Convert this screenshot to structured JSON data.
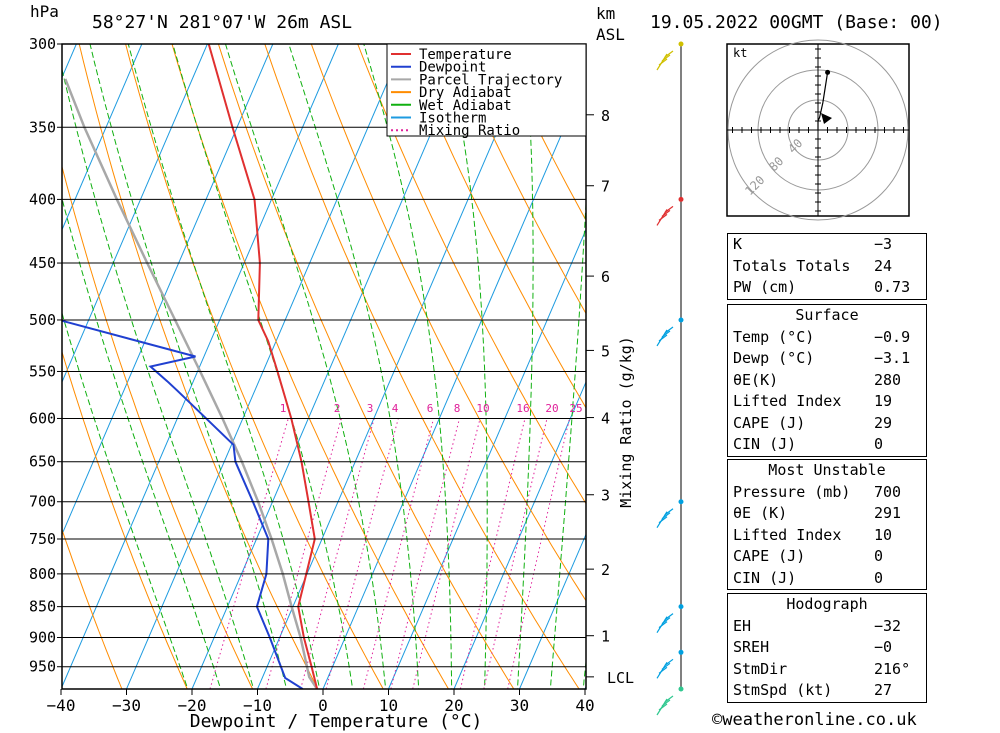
{
  "header": {
    "hpa": "hPa",
    "location": "58°27'N  281°07'W  26m  ASL",
    "km": "km",
    "asl": "ASL",
    "datetime": "19.05.2022  00GMT  (Base: 00)"
  },
  "chart_data": {
    "type": "line",
    "title": "",
    "xlabel": "Dewpoint / Temperature (°C)",
    "ylabel": "hPa",
    "xlim": [
      -40,
      40
    ],
    "ylim": [
      990,
      300
    ],
    "y_log": true,
    "skew": true,
    "x_ticks": [
      -40,
      -30,
      -20,
      -10,
      0,
      10,
      20,
      30,
      40
    ],
    "x_tick_labels": [
      "−40",
      "−30",
      "−20",
      "−10",
      "0",
      "10",
      "20",
      "30",
      "40"
    ],
    "pressure_levels": [
      300,
      350,
      400,
      450,
      500,
      550,
      600,
      650,
      700,
      750,
      800,
      850,
      900,
      950
    ],
    "km_ticks": [
      {
        "label": "1",
        "p": 897
      },
      {
        "label": "2",
        "p": 793
      },
      {
        "label": "3",
        "p": 691
      },
      {
        "label": "4",
        "p": 599
      },
      {
        "label": "5",
        "p": 529
      },
      {
        "label": "6",
        "p": 461
      },
      {
        "label": "7",
        "p": 390
      },
      {
        "label": "8",
        "p": 342
      }
    ],
    "lcl": {
      "label": "LCL",
      "p": 968
    },
    "mixing_ratio_title": "Mixing Ratio (g/kg)",
    "mixing_ratios": [
      1,
      2,
      3,
      4,
      6,
      8,
      10,
      16,
      20,
      25
    ],
    "mixing_ratio_labels": [
      "1",
      "2",
      "3",
      "4",
      "6",
      "8",
      "10",
      "16",
      "20",
      "25"
    ],
    "isotherm_temps": [
      -120,
      -110,
      -100,
      -90,
      -80,
      -70,
      -60,
      -50,
      -40,
      -30,
      -20,
      -10,
      0,
      10,
      20,
      30,
      40
    ],
    "dry_adiabat_thetas": [
      -30,
      -20,
      -10,
      0,
      10,
      20,
      30,
      40,
      50,
      60,
      70,
      80,
      90,
      100,
      110,
      120,
      130,
      140,
      150,
      160
    ],
    "wet_adiabat_thetas": [
      -20,
      -15,
      -10,
      -5,
      0,
      5,
      10,
      15,
      20,
      25,
      30,
      35,
      40
    ],
    "series": [
      {
        "name": "Temperature",
        "color": "#e03030",
        "points": [
          [
            990,
            -0.9
          ],
          [
            950,
            -3.2
          ],
          [
            900,
            -6.3
          ],
          [
            850,
            -9.2
          ],
          [
            800,
            -10.1
          ],
          [
            750,
            -11.1
          ],
          [
            700,
            -14.5
          ],
          [
            650,
            -18.2
          ],
          [
            600,
            -22.6
          ],
          [
            550,
            -27.8
          ],
          [
            520,
            -31.2
          ],
          [
            500,
            -34.1
          ],
          [
            450,
            -37.6
          ],
          [
            400,
            -42.6
          ],
          [
            350,
            -50.7
          ],
          [
            300,
            -59.8
          ]
        ]
      },
      {
        "name": "Dewpoint",
        "color": "#2040d0",
        "points": [
          [
            990,
            -3.1
          ],
          [
            970,
            -6.5
          ],
          [
            900,
            -11.5
          ],
          [
            850,
            -15.5
          ],
          [
            800,
            -16.2
          ],
          [
            750,
            -18.2
          ],
          [
            700,
            -23.0
          ],
          [
            650,
            -28.3
          ],
          [
            630,
            -29.7
          ],
          [
            570,
            -41.8
          ],
          [
            560,
            -44.0
          ],
          [
            545,
            -47.5
          ],
          [
            535,
            -41.3
          ],
          [
            500,
            -64.5
          ],
          [
            450,
            -83.1
          ],
          [
            400,
            -76.0
          ],
          [
            350,
            -82.6
          ],
          [
            330,
            -84.6
          ],
          [
            300,
            -88.2
          ]
        ]
      },
      {
        "name": "Parcel Trajectory",
        "color": "#a8a8a8",
        "points": [
          [
            990,
            -0.9
          ],
          [
            968,
            -2.9
          ],
          [
            900,
            -6.8
          ],
          [
            850,
            -10.2
          ],
          [
            800,
            -13.7
          ],
          [
            750,
            -17.7
          ],
          [
            700,
            -22.2
          ],
          [
            650,
            -27.3
          ],
          [
            600,
            -33.1
          ],
          [
            550,
            -39.6
          ],
          [
            500,
            -46.8
          ],
          [
            450,
            -54.8
          ],
          [
            400,
            -63.6
          ],
          [
            350,
            -73.3
          ],
          [
            320,
            -79.4
          ]
        ]
      }
    ],
    "legend": {
      "position": "top-right",
      "entries": [
        {
          "label": "Temperature",
          "color": "#e03030",
          "dash": "solid"
        },
        {
          "label": "Dewpoint",
          "color": "#2040d0",
          "dash": "solid"
        },
        {
          "label": "Parcel Trajectory",
          "color": "#a8a8a8",
          "dash": "solid"
        },
        {
          "label": "Dry Adiabat",
          "color": "#ff8c00",
          "dash": "solid"
        },
        {
          "label": "Wet Adiabat",
          "color": "#10b010",
          "dash": "solid"
        },
        {
          "label": "Isotherm",
          "color": "#1e9be0",
          "dash": "solid"
        },
        {
          "label": "Mixing Ratio",
          "color": "#e0209a",
          "dash": "dotted"
        }
      ]
    },
    "wind_profile": {
      "colors": [
        "#30c890",
        "#00a0e0",
        "#00a0e0",
        "#00a0e0",
        "#00a0e0",
        "#e03030",
        "#d0c000"
      ],
      "points": [
        {
          "p": 985,
          "color": "#30c890"
        },
        {
          "p": 925,
          "color": "#00a0e0"
        },
        {
          "p": 850,
          "color": "#00a0e0"
        },
        {
          "p": 700,
          "color": "#00a0e0"
        },
        {
          "p": 500,
          "color": "#00a0e0"
        },
        {
          "p": 400,
          "color": "#e03030"
        },
        {
          "p": 300,
          "color": "#d0c000"
        }
      ]
    },
    "hodograph": {
      "unit": "kt",
      "ring_labels": [
        "40",
        "80",
        "120"
      ],
      "points": [
        [
          0,
          0
        ],
        [
          0,
          -1.5
        ],
        [
          0,
          -3
        ],
        [
          0,
          -5
        ],
        [
          1,
          -7
        ],
        [
          3,
          -15
        ],
        [
          6,
          -32
        ]
      ],
      "axis_tick_count": 10
    }
  },
  "indices": [
    {
      "label": "K",
      "value": "−3"
    },
    {
      "label": "Totals Totals",
      "value": "24"
    },
    {
      "label": "PW (cm)",
      "value": "0.73"
    }
  ],
  "surface": {
    "title": "Surface",
    "rows": [
      {
        "label": "Temp (°C)",
        "value": "−0.9"
      },
      {
        "label": "Dewp (°C)",
        "value": "−3.1"
      },
      {
        "label": "θE(K)",
        "value": "280"
      },
      {
        "label": "Lifted Index",
        "value": "19"
      },
      {
        "label": "CAPE (J)",
        "value": "29"
      },
      {
        "label": "CIN (J)",
        "value": "0"
      }
    ]
  },
  "most_unstable": {
    "title": "Most Unstable",
    "rows": [
      {
        "label": "Pressure (mb)",
        "value": "700"
      },
      {
        "label": "θE (K)",
        "value": "291"
      },
      {
        "label": "Lifted Index",
        "value": "10"
      },
      {
        "label": "CAPE (J)",
        "value": "0"
      },
      {
        "label": "CIN (J)",
        "value": "0"
      }
    ]
  },
  "hodograph_table": {
    "title": "Hodograph",
    "rows": [
      {
        "label": "EH",
        "value": "−32"
      },
      {
        "label": "SREH",
        "value": "−0"
      },
      {
        "label": "StmDir",
        "value": "216°"
      },
      {
        "label": "StmSpd (kt)",
        "value": "27"
      }
    ]
  },
  "credit": "©weatheronline.co.uk"
}
